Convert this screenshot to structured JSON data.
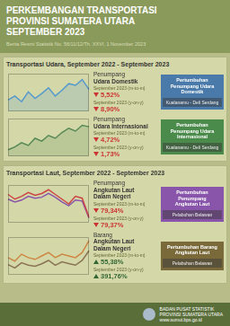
{
  "title": [
    "PERKEMBANGAN TRANSPORTASI",
    "PROVINSI SUMATERA UTARA",
    "SEPTEMBER 2023"
  ],
  "subtitle": "Berita Resmi Statistik No. 56/11/12/Th. XXVI, 1 November 2023",
  "footer": [
    "BADAN PUSAT STATISTIK",
    "PROVINSI SUMATERA UTARA",
    "www.sumut.bps.go.id"
  ],
  "chart_data": [
    {
      "type": "area",
      "section_title": "Transportasi Udara, September 2022 - September 2023",
      "categories": [
        null,
        null,
        null,
        null,
        null,
        null,
        null,
        null,
        null,
        null,
        null,
        null,
        null
      ],
      "values": [
        120,
        125,
        118,
        130,
        122,
        128,
        135,
        125,
        132,
        140,
        138,
        145,
        133
      ],
      "color": "#5599cc",
      "ylim": [
        106.2,
        152.25
      ],
      "grid": false,
      "tick_labels": false,
      "annotations": {
        "heading": [
          "Penumpang",
          "Udara Domestik"
        ],
        "stats": [
          {
            "label": "September 2023 (m-to-m)",
            "value": "5,52%",
            "direction": "down",
            "color": "#cc3333"
          },
          {
            "label": "September 2023 (y-on-y)",
            "value": "8,90%",
            "direction": "down",
            "color": "#cc3333"
          }
        ],
        "box": {
          "title": [
            "Pertumbuhan",
            "Penumpang Udara",
            "Domestik"
          ],
          "subtitle": "Kualanamu - Deli Serdang",
          "color": "#4a7aaa"
        }
      }
    },
    {
      "type": "area",
      "categories": [
        null,
        null,
        null,
        null,
        null,
        null,
        null,
        null,
        null,
        null,
        null,
        null,
        null
      ],
      "values": [
        30,
        32,
        35,
        33,
        38,
        36,
        40,
        38,
        42,
        45,
        43,
        47,
        46
      ],
      "color": "#558855",
      "ylim": [
        25.5,
        51.7
      ],
      "grid": false,
      "tick_labels": false,
      "annotations": {
        "heading": [
          "Penumpang",
          "Udara Internasional"
        ],
        "stats": [
          {
            "label": "September 2023 (m-to-m)",
            "value": "4,72%",
            "direction": "down",
            "color": "#cc3333"
          },
          {
            "label": "September 2023 (y-on-y)",
            "value": "1,73%",
            "direction": "down",
            "color": "#cc3333"
          }
        ],
        "box": {
          "title": [
            "Pertumbuhan",
            "Penumpang Udara",
            "Internasional"
          ],
          "subtitle": "Kualanamu - Deli Serdang",
          "color": "#4a8a4a"
        }
      }
    },
    {
      "type": "line",
      "section_title": "Transportasi Laut, September 2022 - September 2023",
      "categories": [
        null,
        null,
        null,
        null,
        null,
        null,
        null,
        null,
        null,
        null,
        null,
        null,
        null
      ],
      "series": [
        {
          "color": "#cc4444",
          "values": [
            300,
            250,
            280,
            320,
            290,
            310,
            350,
            300,
            250,
            200,
            280,
            260,
            60
          ]
        },
        {
          "color": "#8855aa",
          "values": [
            250,
            220,
            240,
            280,
            260,
            270,
            310,
            270,
            220,
            180,
            240,
            230,
            50
          ]
        }
      ],
      "ylim": [
        0,
        400
      ],
      "grid": false,
      "tick_labels": false,
      "annotations": {
        "heading": [
          "Penumpang",
          "Angkutan Laut",
          "Dalam Negeri"
        ],
        "stats": [
          {
            "label": "September 2023 (m-to-m)",
            "value": "79,34%",
            "direction": "down",
            "color": "#cc3333"
          },
          {
            "label": "September 2023 (y-on-y)",
            "value": "79,37%",
            "direction": "down",
            "color": "#cc3333"
          }
        ],
        "box": {
          "title": [
            "Pertumbuhan Penumpang",
            "Angkutan Laut"
          ],
          "subtitle": "Pelabuhan Belawan",
          "color": "#8855aa"
        }
      }
    },
    {
      "type": "line",
      "categories": [
        null,
        null,
        null,
        null,
        null,
        null,
        null,
        null,
        null,
        null,
        null,
        null,
        null
      ],
      "series": [
        {
          "color": "#cc8844",
          "values": [
            200,
            190,
            210,
            200,
            195,
            205,
            215,
            200,
            210,
            205,
            200,
            215,
            250
          ]
        },
        {
          "color": "#8b7355",
          "values": [
            180,
            170,
            185,
            178,
            175,
            182,
            192,
            178,
            188,
            183,
            178,
            192,
            220
          ]
        }
      ],
      "ylim": [
        150,
        260
      ],
      "grid": false,
      "tick_labels": false,
      "annotations": {
        "heading": [
          "Barang",
          "Angkutan Laut",
          "Dalam Negeri"
        ],
        "stats": [
          {
            "label": "September 2023 (m-to-m)",
            "value": "55,38%",
            "direction": "up",
            "color": "#336633"
          },
          {
            "label": "September 2023 (y-on-y)",
            "value": "391,76%",
            "direction": "up",
            "color": "#336633"
          }
        ],
        "box": {
          "title": [
            "Pertumbuhan Barang",
            "Angkutan Laut"
          ],
          "subtitle": "Pelabuhan Belawan",
          "color": "#7a6a3a"
        }
      }
    }
  ]
}
